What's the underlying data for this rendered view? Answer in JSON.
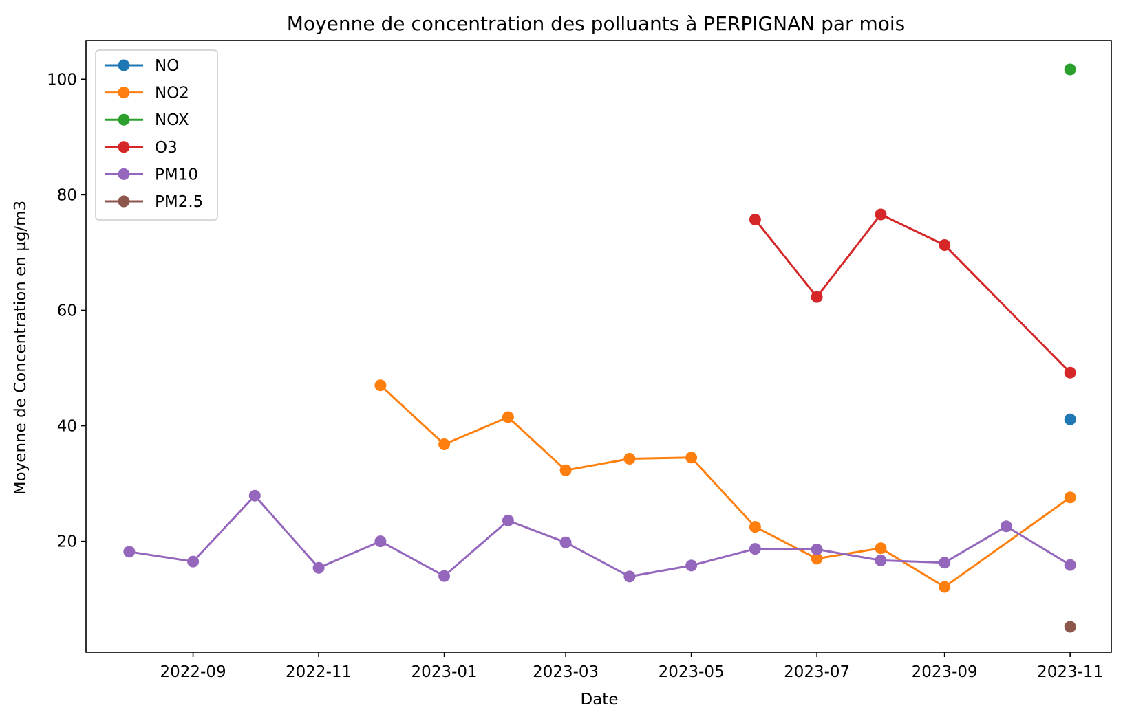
{
  "chart_data": {
    "type": "line",
    "title": "Moyenne de concentration des polluants à PERPIGNAN par mois",
    "xlabel": "Date",
    "ylabel": "Moyenne de Concentration en µg/m3",
    "x_ticks": [
      "2022-09",
      "2022-11",
      "2023-01",
      "2023-03",
      "2023-05",
      "2023-07",
      "2023-09",
      "2023-11"
    ],
    "y_ticks": [
      20,
      40,
      60,
      80,
      100
    ],
    "xlim": [
      "2022-07-11",
      "2023-11-21"
    ],
    "ylim": [
      0.8,
      106.7
    ],
    "grid": false,
    "legend_position": "upper-left",
    "series": [
      {
        "name": "NO",
        "color": "#1f77b4",
        "points": [
          {
            "x": "2023-11-01",
            "y": 41.1
          }
        ]
      },
      {
        "name": "NO2",
        "color": "#ff7f0e",
        "points": [
          {
            "x": "2022-12-01",
            "y": 47.0
          },
          {
            "x": "2023-01-01",
            "y": 36.8
          },
          {
            "x": "2023-02-01",
            "y": 41.5
          },
          {
            "x": "2023-03-01",
            "y": 32.3
          },
          {
            "x": "2023-04-01",
            "y": 34.3
          },
          {
            "x": "2023-05-01",
            "y": 34.5
          },
          {
            "x": "2023-06-01",
            "y": 22.5
          },
          {
            "x": "2023-07-01",
            "y": 17.0
          },
          {
            "x": "2023-08-01",
            "y": 18.8
          },
          {
            "x": "2023-09-01",
            "y": 12.1
          },
          {
            "x": "2023-11-01",
            "y": 27.6
          }
        ]
      },
      {
        "name": "NOX",
        "color": "#2ca02c",
        "points": [
          {
            "x": "2023-11-01",
            "y": 101.7
          }
        ]
      },
      {
        "name": "O3",
        "color": "#d62728",
        "points": [
          {
            "x": "2023-06-01",
            "y": 75.7
          },
          {
            "x": "2023-07-01",
            "y": 62.3
          },
          {
            "x": "2023-08-01",
            "y": 76.6
          },
          {
            "x": "2023-09-01",
            "y": 71.3
          },
          {
            "x": "2023-11-01",
            "y": 49.2
          }
        ]
      },
      {
        "name": "PM10",
        "color": "#9467bd",
        "points": [
          {
            "x": "2022-08-01",
            "y": 18.2
          },
          {
            "x": "2022-09-01",
            "y": 16.5
          },
          {
            "x": "2022-10-01",
            "y": 27.9
          },
          {
            "x": "2022-11-01",
            "y": 15.4
          },
          {
            "x": "2022-12-01",
            "y": 20.0
          },
          {
            "x": "2023-01-01",
            "y": 14.0
          },
          {
            "x": "2023-02-01",
            "y": 23.6
          },
          {
            "x": "2023-03-01",
            "y": 19.8
          },
          {
            "x": "2023-04-01",
            "y": 13.9
          },
          {
            "x": "2023-05-01",
            "y": 15.8
          },
          {
            "x": "2023-06-01",
            "y": 18.7
          },
          {
            "x": "2023-07-01",
            "y": 18.6
          },
          {
            "x": "2023-08-01",
            "y": 16.7
          },
          {
            "x": "2023-09-01",
            "y": 16.3
          },
          {
            "x": "2023-10-01",
            "y": 22.6
          },
          {
            "x": "2023-11-01",
            "y": 15.9
          }
        ]
      },
      {
        "name": "PM2.5",
        "color": "#8c564b",
        "points": [
          {
            "x": "2023-11-01",
            "y": 5.2
          }
        ]
      }
    ]
  }
}
